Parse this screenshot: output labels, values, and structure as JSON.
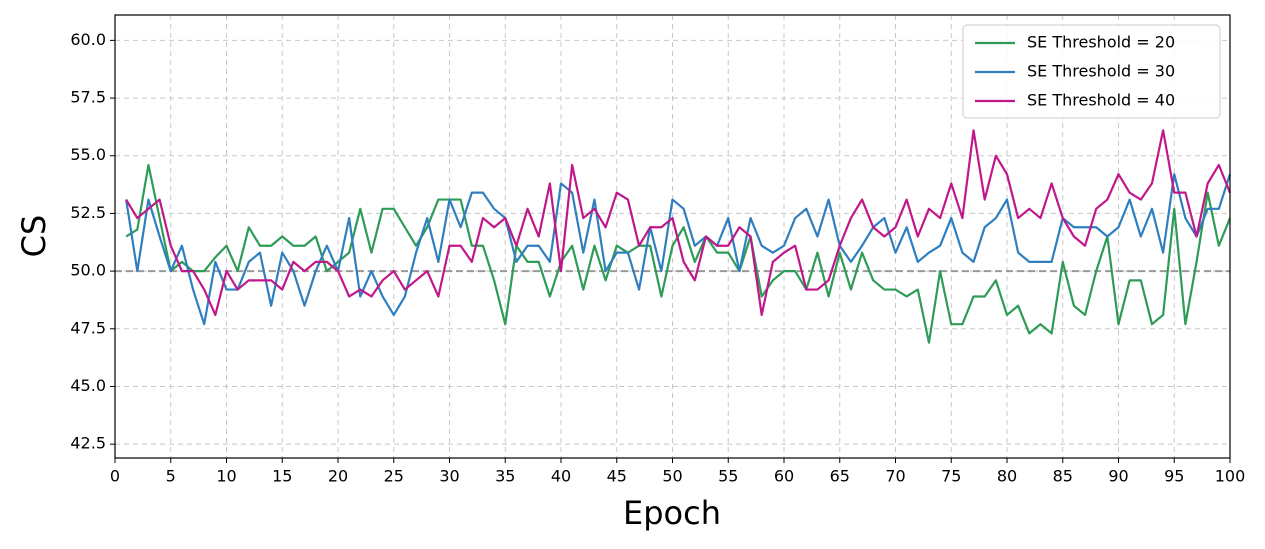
{
  "chart_data": {
    "type": "line",
    "xlabel": "Epoch",
    "ylabel": "CS",
    "x": [
      1,
      2,
      3,
      4,
      5,
      6,
      7,
      8,
      9,
      10,
      11,
      12,
      13,
      14,
      15,
      16,
      17,
      18,
      19,
      20,
      21,
      22,
      23,
      24,
      25,
      26,
      27,
      28,
      29,
      30,
      31,
      32,
      33,
      34,
      35,
      36,
      37,
      38,
      39,
      40,
      41,
      42,
      43,
      44,
      45,
      46,
      47,
      48,
      49,
      50,
      51,
      52,
      53,
      54,
      55,
      56,
      57,
      58,
      59,
      60,
      61,
      62,
      63,
      64,
      65,
      66,
      67,
      68,
      69,
      70,
      71,
      72,
      73,
      74,
      75,
      76,
      77,
      78,
      79,
      80,
      81,
      82,
      83,
      84,
      85,
      86,
      87,
      88,
      89,
      90,
      91,
      92,
      93,
      94,
      95,
      96,
      97,
      98,
      99,
      100
    ],
    "series": [
      {
        "name": "SE Threshold = 20",
        "color": "#2e9b57",
        "values": [
          51.5,
          51.8,
          54.6,
          52.3,
          50.0,
          50.4,
          50.0,
          50.0,
          50.6,
          51.1,
          50.0,
          51.9,
          51.1,
          51.1,
          51.5,
          51.1,
          51.1,
          51.5,
          50.0,
          50.4,
          50.8,
          52.7,
          50.8,
          52.7,
          52.7,
          51.9,
          51.1,
          51.9,
          53.1,
          53.1,
          53.1,
          51.1,
          51.1,
          49.6,
          47.7,
          51.1,
          50.4,
          50.4,
          48.9,
          50.4,
          51.1,
          49.2,
          51.1,
          49.6,
          51.1,
          50.8,
          51.1,
          51.1,
          48.9,
          51.1,
          51.9,
          50.4,
          51.5,
          50.8,
          50.8,
          50.0,
          51.5,
          48.9,
          49.6,
          50.0,
          50.0,
          49.2,
          50.8,
          48.9,
          50.8,
          49.2,
          50.8,
          49.6,
          49.2,
          49.2,
          48.9,
          49.2,
          46.9,
          50.0,
          47.7,
          47.7,
          48.9,
          48.9,
          49.6,
          48.1,
          48.5,
          47.3,
          47.7,
          47.3,
          50.4,
          48.5,
          48.1,
          50.0,
          51.5,
          47.7,
          49.6,
          49.6,
          47.7,
          48.1,
          52.7,
          47.7,
          50.4,
          53.4,
          51.1,
          52.3
        ]
      },
      {
        "name": "SE Threshold = 30",
        "color": "#2f7fc0",
        "values": [
          53.1,
          50.0,
          53.1,
          51.5,
          50.0,
          51.1,
          49.2,
          47.7,
          50.4,
          49.2,
          49.2,
          50.4,
          50.8,
          48.5,
          50.8,
          50.0,
          48.5,
          50.0,
          51.1,
          50.0,
          52.3,
          48.9,
          50.0,
          48.9,
          48.1,
          48.9,
          50.8,
          52.3,
          50.4,
          53.1,
          51.9,
          53.4,
          53.4,
          52.7,
          52.3,
          50.4,
          51.1,
          51.1,
          50.4,
          53.8,
          53.4,
          50.8,
          53.1,
          50.0,
          50.8,
          50.8,
          49.2,
          51.9,
          50.0,
          53.1,
          52.7,
          51.1,
          51.5,
          51.1,
          52.3,
          50.0,
          52.3,
          51.1,
          50.8,
          51.1,
          52.3,
          52.7,
          51.5,
          53.1,
          51.1,
          50.4,
          51.1,
          51.9,
          52.3,
          50.8,
          51.9,
          50.4,
          50.8,
          51.1,
          52.3,
          50.8,
          50.4,
          51.9,
          52.3,
          53.1,
          50.8,
          50.4,
          50.4,
          50.4,
          52.3,
          51.9,
          51.9,
          51.9,
          51.5,
          51.9,
          53.1,
          51.5,
          52.7,
          50.8,
          54.2,
          52.3,
          51.5,
          52.7,
          52.7,
          54.2
        ]
      },
      {
        "name": "SE Threshold = 40",
        "color": "#c0188a",
        "values": [
          53.1,
          52.3,
          52.7,
          53.1,
          51.1,
          50.0,
          50.0,
          49.2,
          48.1,
          50.0,
          49.2,
          49.6,
          49.6,
          49.6,
          49.2,
          50.4,
          50.0,
          50.4,
          50.4,
          50.0,
          48.9,
          49.2,
          48.9,
          49.6,
          50.0,
          49.2,
          49.6,
          50.0,
          48.9,
          51.1,
          51.1,
          50.4,
          52.3,
          51.9,
          52.3,
          51.1,
          52.7,
          51.5,
          53.8,
          50.0,
          54.6,
          52.3,
          52.7,
          51.9,
          53.4,
          53.1,
          51.1,
          51.9,
          51.9,
          52.3,
          50.4,
          49.6,
          51.5,
          51.1,
          51.1,
          51.9,
          51.5,
          48.1,
          50.4,
          50.8,
          51.1,
          49.2,
          49.2,
          49.6,
          51.1,
          52.3,
          53.1,
          51.9,
          51.5,
          51.9,
          53.1,
          51.5,
          52.7,
          52.3,
          53.8,
          52.3,
          56.1,
          53.1,
          55.0,
          54.2,
          52.3,
          52.7,
          52.3,
          53.8,
          52.3,
          51.5,
          51.1,
          52.7,
          53.1,
          54.2,
          53.4,
          53.1,
          53.8,
          56.1,
          53.4,
          53.4,
          51.5,
          53.8,
          54.6,
          53.4
        ]
      }
    ],
    "hline": 50,
    "xlim": [
      0,
      100
    ],
    "ylim": [
      41.9,
      61.1
    ],
    "xticks": [
      0,
      5,
      10,
      15,
      20,
      25,
      30,
      35,
      40,
      45,
      50,
      55,
      60,
      65,
      70,
      75,
      80,
      85,
      90,
      95,
      100
    ],
    "yticks": [
      42.5,
      {
        "value": 45,
        "label": "45.0"
      },
      47.5,
      {
        "value": 50,
        "label": "50.0"
      },
      52.5,
      {
        "value": 55,
        "label": "55.0"
      },
      57.5,
      {
        "value": 60,
        "label": "60.0"
      }
    ],
    "grid": true,
    "legend": "upper right"
  }
}
